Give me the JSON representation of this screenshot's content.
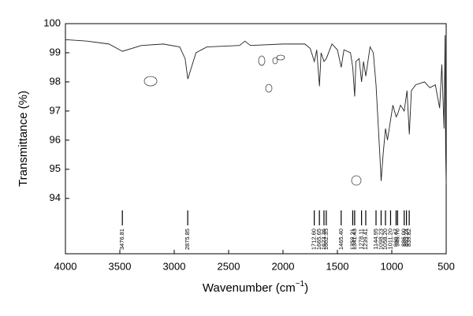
{
  "chart_data": {
    "type": "line",
    "xlabel": [
      "Wavenumber (cm",
      "−1",
      ")"
    ],
    "ylabel": "Transmittance (%)",
    "x": [
      4000,
      3800,
      3600,
      3476,
      3300,
      3100,
      2950,
      2900,
      2875,
      2850,
      2800,
      2700,
      2400,
      2350,
      2300,
      2000,
      1800,
      1750,
      1712,
      1690,
      1665,
      1650,
      1623,
      1602,
      1550,
      1500,
      1465,
      1440,
      1380,
      1359,
      1341,
      1330,
      1300,
      1278,
      1260,
      1239,
      1200,
      1170,
      1145,
      1110,
      1098,
      1080,
      1058,
      1040,
      1011,
      990,
      960,
      946,
      920,
      886,
      860,
      839,
      820,
      780,
      700,
      650,
      600,
      560,
      540,
      520,
      510,
      505,
      500
    ],
    "values": [
      99.45,
      99.4,
      99.3,
      99.05,
      99.25,
      99.3,
      99.2,
      98.8,
      98.1,
      98.4,
      99.0,
      99.2,
      99.25,
      99.4,
      99.25,
      99.3,
      99.3,
      99.15,
      98.7,
      99.1,
      97.85,
      99.0,
      98.7,
      98.8,
      99.3,
      99.1,
      98.5,
      99.1,
      99.0,
      98.5,
      97.5,
      98.7,
      98.8,
      98.0,
      98.7,
      98.2,
      99.2,
      99.0,
      97.9,
      95.5,
      94.6,
      95.5,
      96.4,
      96.0,
      96.7,
      97.2,
      96.8,
      96.9,
      97.2,
      97.0,
      97.7,
      96.2,
      97.7,
      97.9,
      98.0,
      97.8,
      97.9,
      97.1,
      98.6,
      96.4,
      99.6,
      95.6,
      94.5
    ],
    "color": "#222222",
    "xlim": [
      4000,
      500
    ],
    "xticks": [
      4000,
      3500,
      3000,
      2500,
      2000,
      1500,
      1000,
      500
    ],
    "ylim": [
      92.1,
      100
    ],
    "yticks": [
      94,
      95,
      96,
      97,
      98,
      99,
      100
    ],
    "peaks": [
      {
        "value": 3476.81,
        "label": "3476.81"
      },
      {
        "value": 2875.85,
        "label": "2875.85"
      },
      {
        "value": 1712.6,
        "label": "1712.60"
      },
      {
        "value": 1665.65,
        "label": "1665.65"
      },
      {
        "value": 1623.36,
        "label": "1623.36"
      },
      {
        "value": 1602.35,
        "label": "1602.35"
      },
      {
        "value": 1465.4,
        "label": "1465.40"
      },
      {
        "value": 1359.21,
        "label": "1359.21"
      },
      {
        "value": 1341.43,
        "label": "1341.43"
      },
      {
        "value": 1278.11,
        "label": "1278.11"
      },
      {
        "value": 1239.41,
        "label": "1239.41"
      },
      {
        "value": 1144.95,
        "label": "1144.95"
      },
      {
        "value": 1098.23,
        "label": "1098.23"
      },
      {
        "value": 1058.2,
        "label": "1058.20"
      },
      {
        "value": 1011.2,
        "label": "1011.20"
      },
      {
        "value": 960.47,
        "label": "960.47"
      },
      {
        "value": 946.7,
        "label": "946.70"
      },
      {
        "value": 886.0,
        "label": "886.00"
      },
      {
        "value": 865.24,
        "label": "865.24"
      },
      {
        "value": 839.82,
        "label": "839.82"
      }
    ]
  }
}
